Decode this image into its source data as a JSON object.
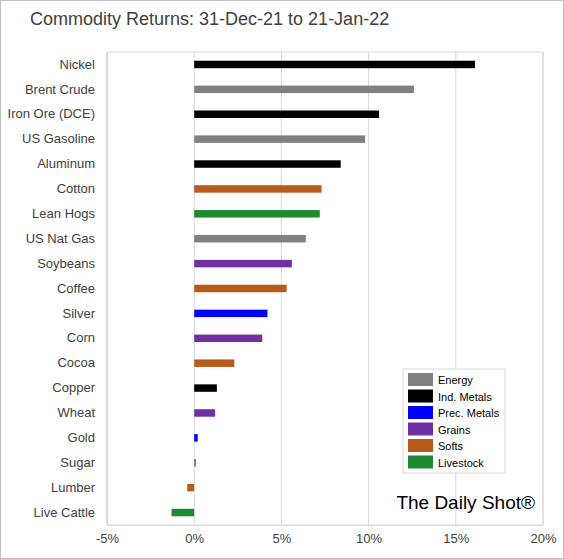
{
  "chart_data": {
    "type": "bar",
    "orientation": "horizontal",
    "title": "Commodity Returns: 31-Dec-21 to 21-Jan-22",
    "categories": [
      "Nickel",
      "Brent Crude",
      "Iron Ore (DCE)",
      "US Gasoline",
      "Aluminum",
      "Cotton",
      "Lean Hogs",
      "US Nat Gas",
      "Soybeans",
      "Coffee",
      "Silver",
      "Corn",
      "Cocoa",
      "Copper",
      "Wheat",
      "Gold",
      "Sugar",
      "Lumber",
      "Live Cattle"
    ],
    "series": [
      {
        "name": "Energy",
        "color": "#808080",
        "values": [
          null,
          12.6,
          null,
          9.8,
          null,
          null,
          null,
          6.4,
          null,
          null,
          null,
          null,
          null,
          null,
          null,
          null,
          null,
          null,
          null
        ]
      },
      {
        "name": "Ind. Metals",
        "color": "#000000",
        "values": [
          16.1,
          null,
          10.6,
          null,
          8.4,
          null,
          null,
          null,
          null,
          null,
          null,
          null,
          null,
          1.3,
          null,
          null,
          null,
          null,
          null
        ]
      },
      {
        "name": "Prec. Metals",
        "color": "#0000ff",
        "values": [
          null,
          null,
          null,
          null,
          null,
          null,
          null,
          null,
          null,
          null,
          4.2,
          null,
          null,
          null,
          null,
          0.2,
          null,
          null,
          null
        ]
      },
      {
        "name": "Grains",
        "color": "#7030a0",
        "values": [
          null,
          null,
          null,
          null,
          null,
          null,
          null,
          null,
          5.6,
          null,
          null,
          3.9,
          null,
          null,
          1.2,
          null,
          null,
          null,
          null
        ]
      },
      {
        "name": "Softs",
        "color": "#b85a1c",
        "values": [
          null,
          null,
          null,
          null,
          null,
          7.3,
          null,
          null,
          null,
          5.3,
          null,
          null,
          2.3,
          null,
          null,
          null,
          0.1,
          -0.4,
          null
        ]
      },
      {
        "name": "Livestock",
        "color": "#1e8a2e",
        "values": [
          null,
          null,
          null,
          null,
          null,
          null,
          7.2,
          null,
          null,
          null,
          null,
          null,
          null,
          null,
          null,
          null,
          null,
          null,
          -1.3
        ]
      }
    ],
    "xlim": [
      -5,
      20
    ],
    "xticks": [
      {
        "value": -5,
        "label": "-5%"
      },
      {
        "value": 0,
        "label": "0%"
      },
      {
        "value": 5,
        "label": "5%"
      },
      {
        "value": 10,
        "label": "10%"
      },
      {
        "value": 15,
        "label": "15%"
      },
      {
        "value": 20,
        "label": "20%"
      }
    ],
    "grid": true,
    "legend": "lower right",
    "annotations": [
      "The Daily Shot®"
    ]
  }
}
